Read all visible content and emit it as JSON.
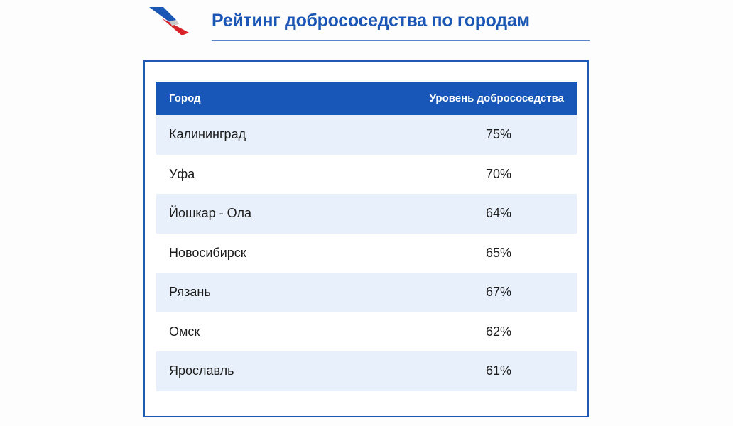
{
  "header": {
    "title": "Рейтинг добрососедства по городам",
    "colors": {
      "brand_blue": "#1b56b4",
      "brand_red": "#d8232a"
    },
    "logo_icon": "logo-swoosh-icon"
  },
  "table": {
    "columns": [
      "Город",
      "Уровень добрососедства"
    ],
    "rows": [
      {
        "city": "Калининград",
        "value": "75%"
      },
      {
        "city": "Уфа",
        "value": "70%"
      },
      {
        "city": "Йошкар - Ола",
        "value": "64%"
      },
      {
        "city": "Новосибирск",
        "value": "65%"
      },
      {
        "city": "Рязань",
        "value": "67%"
      },
      {
        "city": "Омск",
        "value": "62%"
      },
      {
        "city": "Ярославль",
        "value": "61%"
      }
    ],
    "colors": {
      "header_bg": "#1857b8",
      "row_shade": "#e7f0fb"
    }
  }
}
